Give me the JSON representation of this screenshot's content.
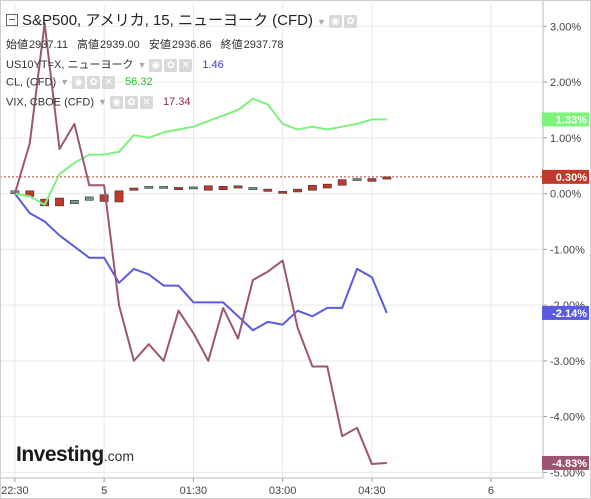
{
  "header": {
    "title": "S&P500, アメリカ, 15, ニューヨーク (CFD)",
    "ohlc": [
      {
        "label": "始値",
        "value": "2937.11"
      },
      {
        "label": "高値",
        "value": "2939.00"
      },
      {
        "label": "安値",
        "value": "2936.86"
      },
      {
        "label": "終値",
        "value": "2937.78"
      }
    ]
  },
  "series_rows": [
    {
      "name": "US10YT=X, ニューヨーク",
      "value": "1.46",
      "color": "#3b3bd6"
    },
    {
      "name": "CL, (CFD)",
      "value": "56.32",
      "color": "#22c722"
    },
    {
      "name": "VIX, CBOE (CFD)",
      "value": "17.34",
      "color": "#8b2c46"
    }
  ],
  "logo": {
    "name": "Investing",
    "domain": ".com"
  },
  "colors": {
    "up_candle": "#6f9e86",
    "down_candle": "#c0392b",
    "ref_line": "#c0392b",
    "grid": "#e9e9e9",
    "axis_text": "#444444"
  },
  "chart_data": {
    "type": "line",
    "ylim": [
      -5.1,
      3.4
    ],
    "y_ticks": [
      3,
      2,
      1,
      0,
      -1,
      -2,
      -3,
      -4,
      -5
    ],
    "y_tick_labels": [
      "3.00%",
      "2.00%",
      "1.00%",
      "0.00%",
      "-1.00%",
      "-2.00%",
      "-3.00%",
      "-4.00%",
      "-5.00%"
    ],
    "x_ticks": [
      {
        "i": 0,
        "label": "22:30"
      },
      {
        "i": 6,
        "label": "5"
      },
      {
        "i": 12,
        "label": "01:30"
      },
      {
        "i": 18,
        "label": "03:00"
      },
      {
        "i": 24,
        "label": "04:30"
      },
      {
        "i": 32,
        "label": "6"
      }
    ],
    "x_range": [
      -1,
      35.5
    ],
    "x_right": 30.5,
    "series": [
      {
        "name": "US10YT=X",
        "color": "#5b5be0",
        "last_label": "-2.14%",
        "points": [
          [
            0,
            0
          ],
          [
            1,
            -0.35
          ],
          [
            2,
            -0.5
          ],
          [
            3,
            -0.75
          ],
          [
            4,
            -0.95
          ],
          [
            5,
            -1.15
          ],
          [
            6,
            -1.15
          ],
          [
            7,
            -1.6
          ],
          [
            8,
            -1.35
          ],
          [
            9,
            -1.45
          ],
          [
            10,
            -1.65
          ],
          [
            11,
            -1.65
          ],
          [
            12,
            -1.95
          ],
          [
            13,
            -1.95
          ],
          [
            14,
            -1.95
          ],
          [
            15,
            -2.2
          ],
          [
            16,
            -2.45
          ],
          [
            17,
            -2.3
          ],
          [
            18,
            -2.35
          ],
          [
            19,
            -2.1
          ],
          [
            20,
            -2.2
          ],
          [
            21,
            -2.05
          ],
          [
            22,
            -2.05
          ],
          [
            23,
            -1.35
          ],
          [
            24,
            -1.5
          ],
          [
            25,
            -2.14
          ]
        ]
      },
      {
        "name": "CL",
        "color": "#7df27d",
        "last_label": "1.33%",
        "points": [
          [
            0,
            0
          ],
          [
            1,
            -0.05
          ],
          [
            2,
            -0.2
          ],
          [
            3,
            0.35
          ],
          [
            4,
            0.55
          ],
          [
            5,
            0.7
          ],
          [
            6,
            0.7
          ],
          [
            7,
            0.75
          ],
          [
            8,
            1.05
          ],
          [
            9,
            1.0
          ],
          [
            10,
            1.1
          ],
          [
            11,
            1.15
          ],
          [
            12,
            1.2
          ],
          [
            13,
            1.3
          ],
          [
            14,
            1.4
          ],
          [
            15,
            1.5
          ],
          [
            16,
            1.7
          ],
          [
            17,
            1.6
          ],
          [
            18,
            1.25
          ],
          [
            19,
            1.15
          ],
          [
            20,
            1.2
          ],
          [
            21,
            1.15
          ],
          [
            22,
            1.2
          ],
          [
            23,
            1.25
          ],
          [
            24,
            1.33
          ],
          [
            25,
            1.33
          ]
        ]
      },
      {
        "name": "VIX",
        "color": "#9c5672",
        "last_label": "-4.83%",
        "points": [
          [
            0,
            0
          ],
          [
            1,
            0.9
          ],
          [
            2,
            3.05
          ],
          [
            3,
            0.8
          ],
          [
            4,
            1.25
          ],
          [
            5,
            0.15
          ],
          [
            6,
            0.15
          ],
          [
            7,
            -2.0
          ],
          [
            8,
            -3.0
          ],
          [
            9,
            -2.7
          ],
          [
            10,
            -3.0
          ],
          [
            11,
            -2.1
          ],
          [
            12,
            -2.5
          ],
          [
            13,
            -3.0
          ],
          [
            14,
            -2.05
          ],
          [
            15,
            -2.6
          ],
          [
            16,
            -1.55
          ],
          [
            17,
            -1.4
          ],
          [
            18,
            -1.2
          ],
          [
            19,
            -2.4
          ],
          [
            20,
            -3.1
          ],
          [
            21,
            -3.1
          ],
          [
            22,
            -4.35
          ],
          [
            23,
            -4.2
          ],
          [
            24,
            -4.85
          ],
          [
            25,
            -4.83
          ]
        ]
      }
    ],
    "candles": [
      {
        "i": 0,
        "o": 0.0,
        "c": 0.05
      },
      {
        "i": 1,
        "o": 0.05,
        "c": -0.05
      },
      {
        "i": 2,
        "o": -0.1,
        "c": -0.22
      },
      {
        "i": 3,
        "o": -0.08,
        "c": -0.22
      },
      {
        "i": 4,
        "o": -0.18,
        "c": -0.12
      },
      {
        "i": 5,
        "o": -0.12,
        "c": -0.06
      },
      {
        "i": 6,
        "o": -0.02,
        "c": -0.14
      },
      {
        "i": 7,
        "o": 0.05,
        "c": -0.15
      },
      {
        "i": 8,
        "o": 0.1,
        "c": 0.06
      },
      {
        "i": 9,
        "o": 0.13,
        "c": 0.13
      },
      {
        "i": 10,
        "o": 0.11,
        "c": 0.13
      },
      {
        "i": 11,
        "o": 0.11,
        "c": 0.07
      },
      {
        "i": 12,
        "o": 0.09,
        "c": 0.12
      },
      {
        "i": 13,
        "o": 0.14,
        "c": 0.06
      },
      {
        "i": 14,
        "o": 0.13,
        "c": 0.07
      },
      {
        "i": 15,
        "o": 0.14,
        "c": 0.1
      },
      {
        "i": 16,
        "o": 0.07,
        "c": 0.11
      },
      {
        "i": 17,
        "o": 0.08,
        "c": 0.04
      },
      {
        "i": 18,
        "o": 0.04,
        "c": 0.02
      },
      {
        "i": 19,
        "o": 0.08,
        "c": 0.03
      },
      {
        "i": 20,
        "o": 0.15,
        "c": 0.06
      },
      {
        "i": 21,
        "o": 0.17,
        "c": 0.1
      },
      {
        "i": 22,
        "o": 0.25,
        "c": 0.15
      },
      {
        "i": 23,
        "o": 0.25,
        "c": 0.27
      },
      {
        "i": 24,
        "o": 0.27,
        "c": 0.22
      },
      {
        "i": 25,
        "o": 0.3,
        "c": 0.26
      }
    ],
    "current": {
      "value": 0.3,
      "label": "0.30%"
    }
  }
}
